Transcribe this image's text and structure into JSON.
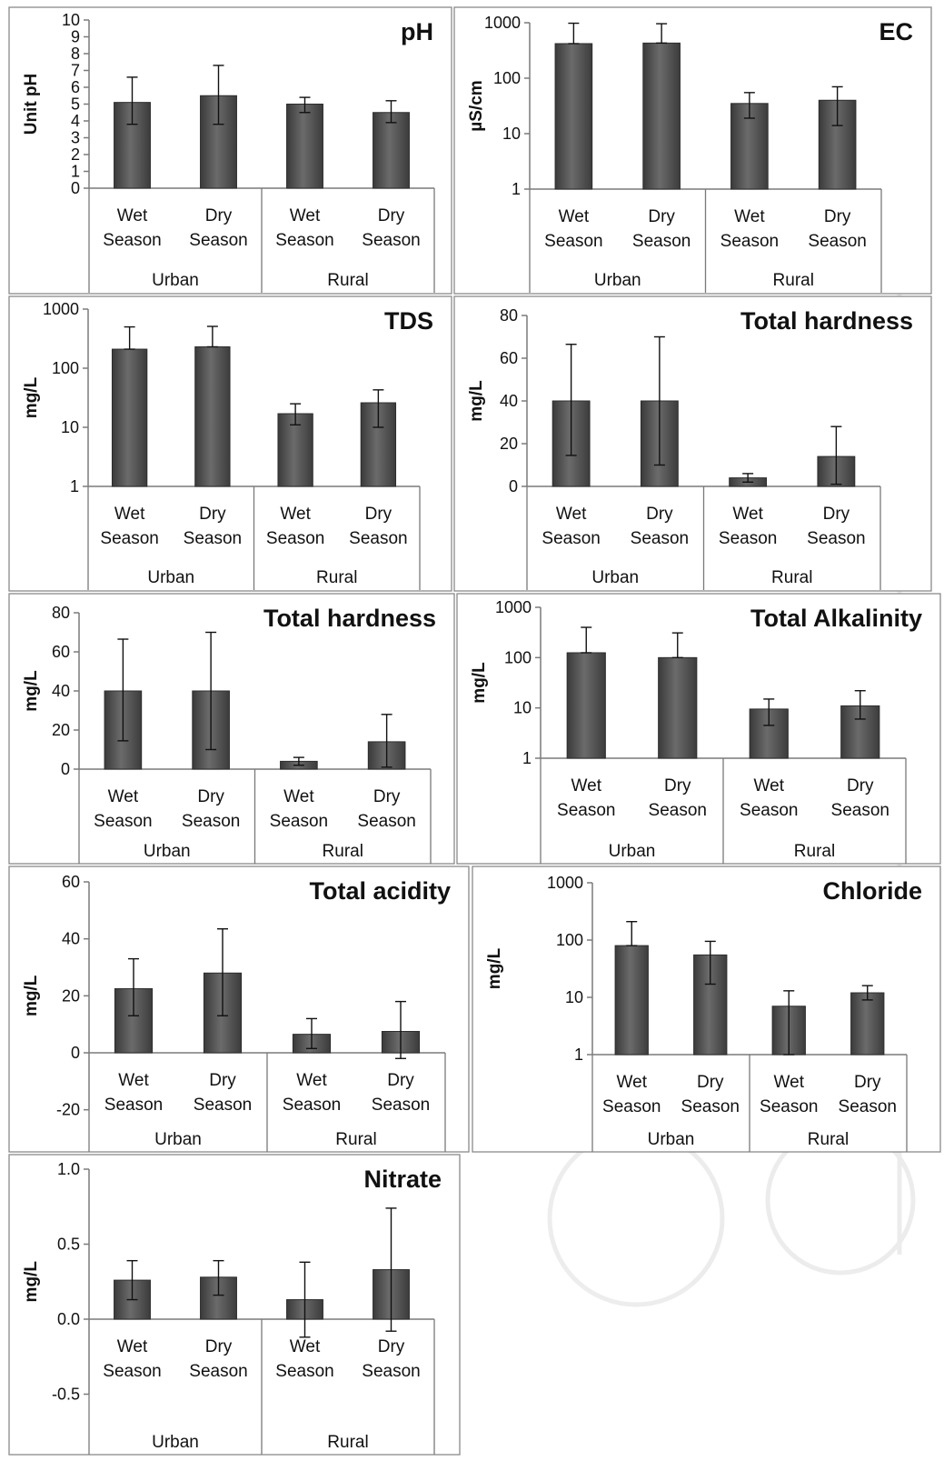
{
  "chart_data": [
    {
      "type": "bar",
      "title": "pH",
      "ylabel": "Unit pH",
      "scale": "linear",
      "ylim": [
        0,
        10
      ],
      "yticks": [
        "0",
        "1",
        "2",
        "3",
        "4",
        "5",
        "6",
        "7",
        "8",
        "9",
        "10"
      ],
      "categories": [
        "Wet Season",
        "Dry Season",
        "Wet Season",
        "Dry Season"
      ],
      "groups": [
        "Urban",
        "Rural"
      ],
      "values": [
        5.1,
        5.5,
        5.0,
        4.5
      ],
      "err_low": [
        3.8,
        3.8,
        4.5,
        3.9
      ],
      "err_high": [
        6.6,
        7.3,
        5.4,
        5.2
      ]
    },
    {
      "type": "bar",
      "title": "EC",
      "ylabel": "µS/cm",
      "scale": "log",
      "ylim": [
        1,
        1000
      ],
      "yticks": [
        "1",
        "10",
        "100",
        "1000"
      ],
      "categories": [
        "Wet Season",
        "Dry Season",
        "Wet Season",
        "Dry Season"
      ],
      "groups": [
        "Urban",
        "Rural"
      ],
      "values": [
        420,
        430,
        35,
        40
      ],
      "err_low": [
        420,
        430,
        19,
        14
      ],
      "err_high": [
        980,
        960,
        55,
        70
      ]
    },
    {
      "type": "bar",
      "title": "TDS",
      "ylabel": "mg/L",
      "scale": "log",
      "ylim": [
        1,
        1000
      ],
      "yticks": [
        "1",
        "10",
        "100",
        "1000"
      ],
      "categories": [
        "Wet Season",
        "Dry Season",
        "Wet Season",
        "Dry Season"
      ],
      "groups": [
        "Urban",
        "Rural"
      ],
      "values": [
        210,
        230,
        17,
        26
      ],
      "err_low": [
        210,
        230,
        11,
        10
      ],
      "err_high": [
        500,
        510,
        25,
        43
      ]
    },
    {
      "type": "bar",
      "title": "Total hardness",
      "ylabel": "mg/L",
      "scale": "linear",
      "ylim": [
        0,
        80
      ],
      "yticks": [
        "0",
        "20",
        "40",
        "60",
        "80"
      ],
      "categories": [
        "Wet Season",
        "Dry Season",
        "Wet Season",
        "Dry Season"
      ],
      "groups": [
        "Urban",
        "Rural"
      ],
      "values": [
        40,
        40,
        4,
        14
      ],
      "err_low": [
        14.5,
        10,
        2,
        1
      ],
      "err_high": [
        66.5,
        70,
        6,
        28
      ]
    },
    {
      "type": "bar",
      "title": "Total hardness",
      "ylabel": "mg/L",
      "scale": "linear",
      "ylim": [
        0,
        80
      ],
      "yticks": [
        "0",
        "20",
        "40",
        "60",
        "80"
      ],
      "categories": [
        "Wet Season",
        "Dry Season",
        "Wet Season",
        "Dry Season"
      ],
      "groups": [
        "Urban",
        "Rural"
      ],
      "values": [
        40,
        40,
        4,
        14
      ],
      "err_low": [
        14.5,
        10,
        2,
        1
      ],
      "err_high": [
        66.5,
        70,
        6,
        28
      ]
    },
    {
      "type": "bar",
      "title": "Total Alkalinity",
      "ylabel": "mg/L",
      "scale": "log",
      "ylim": [
        1,
        1000
      ],
      "yticks": [
        "1",
        "10",
        "100",
        "1000"
      ],
      "categories": [
        "Wet Season",
        "Dry Season",
        "Wet Season",
        "Dry Season"
      ],
      "groups": [
        "Urban",
        "Rural"
      ],
      "values": [
        125,
        100,
        9.5,
        11
      ],
      "err_low": [
        125,
        100,
        4.5,
        6
      ],
      "err_high": [
        400,
        310,
        15,
        22
      ]
    },
    {
      "type": "bar",
      "title": "Total acidity",
      "ylabel": "mg/L",
      "scale": "linear",
      "ylim": [
        -30,
        60
      ],
      "yticks": [
        "-20",
        "0",
        "20",
        "40",
        "60"
      ],
      "categories": [
        "Wet Season",
        "Dry Season",
        "Wet Season",
        "Dry Season"
      ],
      "groups": [
        "Urban",
        "Rural"
      ],
      "values": [
        22.5,
        28,
        6.5,
        7.5
      ],
      "err_low": [
        13,
        13,
        1.5,
        -2
      ],
      "err_high": [
        33,
        43.5,
        12,
        18
      ]
    },
    {
      "type": "bar",
      "title": "Chloride",
      "ylabel": "mg/L",
      "scale": "log",
      "ylim": [
        1,
        1000
      ],
      "yticks": [
        "1",
        "10",
        "100",
        "1000"
      ],
      "categories": [
        "Wet Season",
        "Dry Season",
        "Wet Season",
        "Dry Season"
      ],
      "groups": [
        "Urban",
        "Rural"
      ],
      "values": [
        80,
        55,
        7,
        12
      ],
      "err_low": [
        80,
        17,
        1,
        9
      ],
      "err_high": [
        210,
        95,
        13,
        16
      ]
    },
    {
      "type": "bar",
      "title": "Nitrate",
      "ylabel": "mg/L",
      "scale": "linear",
      "ylim": [
        -0.6,
        1.0
      ],
      "yticks": [
        "-0.5",
        "0.0",
        "0.5",
        "1.0"
      ],
      "categories": [
        "Wet Season",
        "Dry Season",
        "Wet Season",
        "Dry Season"
      ],
      "groups": [
        "Urban",
        "Rural"
      ],
      "values": [
        0.26,
        0.28,
        0.13,
        0.33
      ],
      "err_low": [
        0.13,
        0.16,
        -0.12,
        -0.08
      ],
      "err_high": [
        0.39,
        0.39,
        0.38,
        0.74
      ]
    }
  ]
}
